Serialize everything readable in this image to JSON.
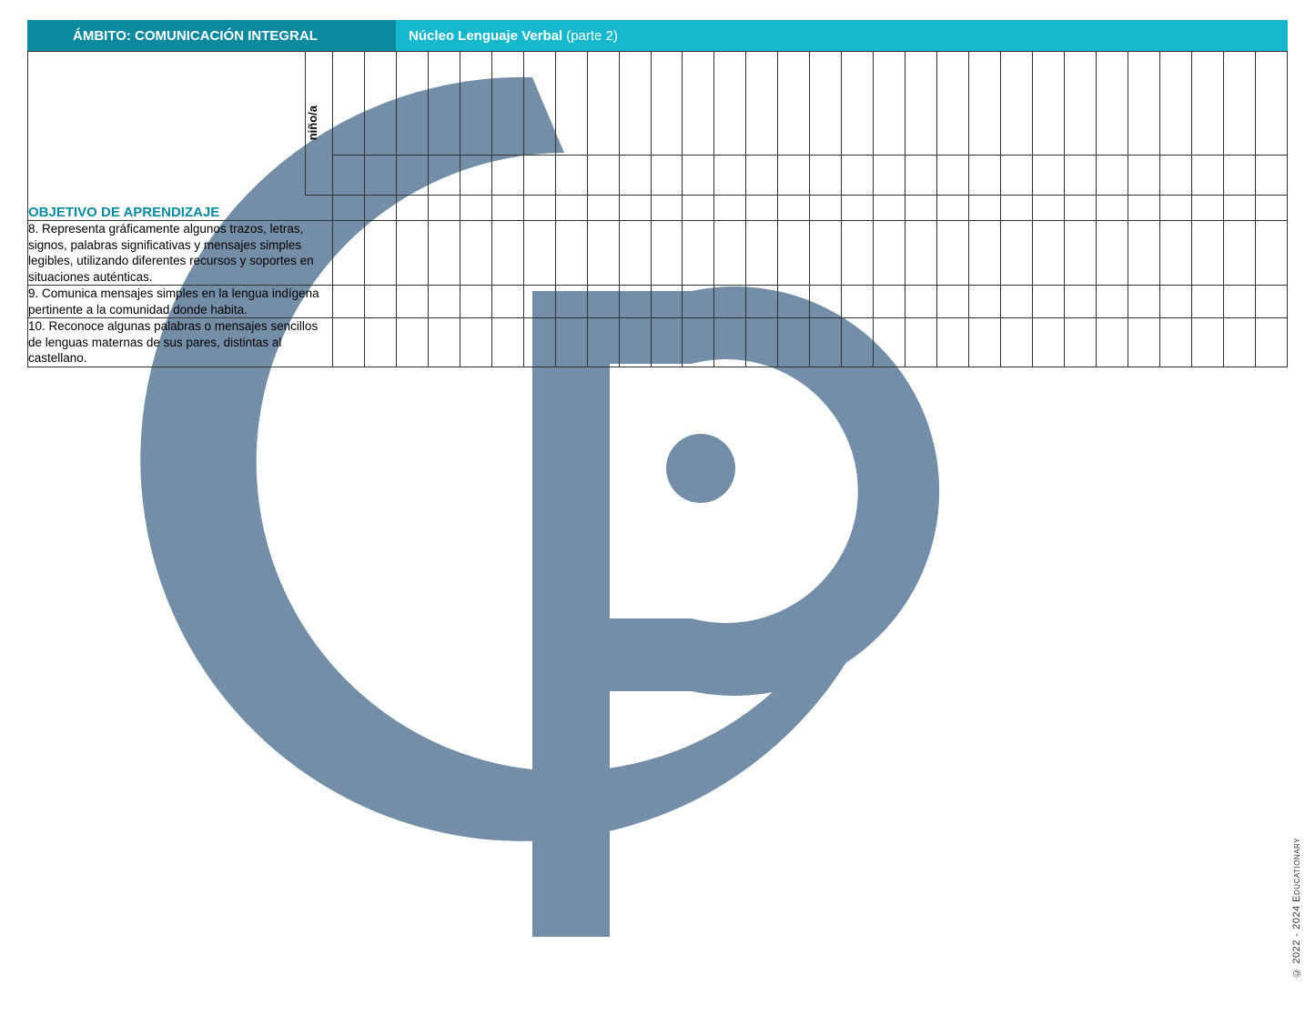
{
  "header": {
    "left_label": "ÁMBITO: COMUNICACIÓN INTEGRAL",
    "right_bold": "Núcleo Lenguaje Verbal",
    "right_light": "(parte 2)",
    "left_bg": "#0b8a9f",
    "right_bg": "#17b8ce",
    "text_color": "#ffffff"
  },
  "table": {
    "vertical_label": "niño/a",
    "subheader": "OBJETIVO DE APRENDIZAJE",
    "subheader_color": "#0b8a9f",
    "border_color": "#333333",
    "num_data_columns": 30,
    "objectives": [
      "8. Representa gráficamente algunos trazos, letras, signos, palabras significativas y mensajes simples legibles, utilizando diferentes recursos y soportes en situaciones auténticas.",
      "9. Comunica mensajes simples en la lengua indígena pertinente a la comunidad donde habita.",
      "10. Reconoce algunas palabras o mensajes sencillos de lenguas maternas de sus pares, distintas al castellano."
    ]
  },
  "watermark": {
    "color": "#5c7a99",
    "opacity": 0.85
  },
  "copyright": "© 2022 - 2024 Educationary",
  "page_bg": "#ffffff"
}
